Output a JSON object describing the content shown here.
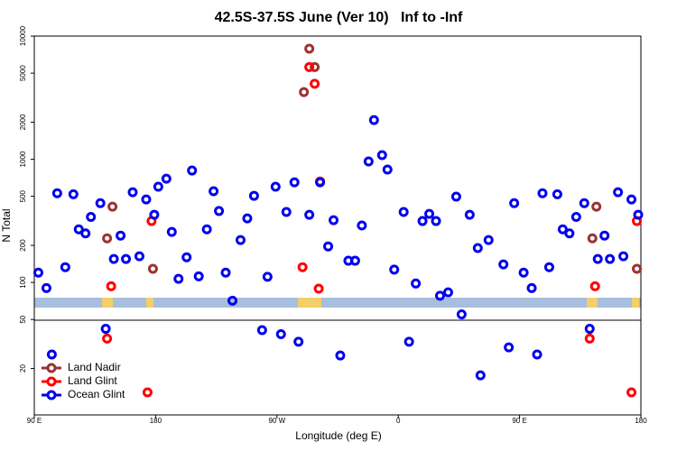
{
  "chart_data": {
    "type": "scatter",
    "title": "42.5S-37.5S June (Ver 10)   Inf to -Inf",
    "x_label": "Longitude (deg E)",
    "y_label": "N Total",
    "log_y": true,
    "legend": "lower left",
    "xlim": [
      90,
      540
    ],
    "ylim": [
      8.4,
      10000
    ],
    "xticks": [
      {
        "value": 90,
        "label": "90 E"
      },
      180,
      {
        "value": 270,
        "label": "90 W"
      },
      {
        "value": 360,
        "label": "0"
      },
      {
        "value": 450,
        "label": "90 E"
      },
      {
        "value": 540,
        "label": "180"
      }
    ],
    "yticks": [
      20,
      50,
      100,
      200,
      500,
      1000,
      2000,
      5000,
      10000
    ],
    "series": [
      {
        "name": "Land Nadir",
        "color": "#993333",
        "x": [
          144,
          148,
          178,
          294,
          298,
          290,
          504,
          507,
          537
        ],
        "values": [
          228,
          412,
          129,
          7900,
          5600,
          3510,
          228,
          412,
          129
        ]
      },
      {
        "name": "Land Glint",
        "color": "#ff0000",
        "x": [
          147,
          144,
          174,
          177,
          289,
          301,
          294,
          298,
          302,
          506,
          502,
          533,
          537
        ],
        "values": [
          93,
          35,
          12.8,
          315,
          133,
          89,
          5600,
          4100,
          660,
          93,
          35,
          12.8,
          315
        ]
      },
      {
        "name": "Ocean Glint",
        "color": "#0000ee",
        "x": [
          93,
          99,
          103,
          107,
          113,
          119,
          123,
          128,
          132,
          139,
          143,
          149,
          154,
          158,
          163,
          168,
          173,
          179,
          182,
          188,
          192,
          197,
          203,
          207,
          212,
          218,
          223,
          227,
          232,
          237,
          243,
          248,
          253,
          259,
          263,
          269,
          273,
          277,
          283,
          286,
          294,
          302,
          308,
          312,
          317,
          323,
          328,
          333,
          338,
          342,
          348,
          352,
          357,
          364,
          368,
          373,
          378,
          383,
          388,
          391,
          397,
          403,
          407,
          413,
          419,
          421,
          427,
          438,
          442,
          446,
          453,
          459,
          463,
          467,
          472,
          478,
          482,
          487,
          492,
          498,
          502,
          508,
          513,
          517,
          523,
          527,
          533,
          538
        ],
        "values": [
          120,
          90,
          26,
          530,
          133,
          520,
          270,
          250,
          340,
          440,
          42,
          155,
          240,
          155,
          540,
          163,
          472,
          354,
          598,
          695,
          257,
          107,
          160,
          810,
          112,
          270,
          550,
          380,
          120,
          71,
          221,
          331,
          505,
          41,
          111,
          598,
          38,
          373,
          650,
          33,
          354,
          650,
          196,
          320,
          25.5,
          150,
          150,
          290,
          960,
          2080,
          1080,
          824,
          127,
          373,
          33,
          98,
          315,
          360,
          315,
          78,
          83,
          497,
          55,
          354,
          190,
          17.6,
          221,
          140,
          29.7,
          440,
          120,
          90,
          26,
          530,
          133,
          520,
          270,
          250,
          340,
          440,
          42,
          155,
          240,
          155,
          540,
          163,
          472,
          354
        ]
      }
    ]
  }
}
